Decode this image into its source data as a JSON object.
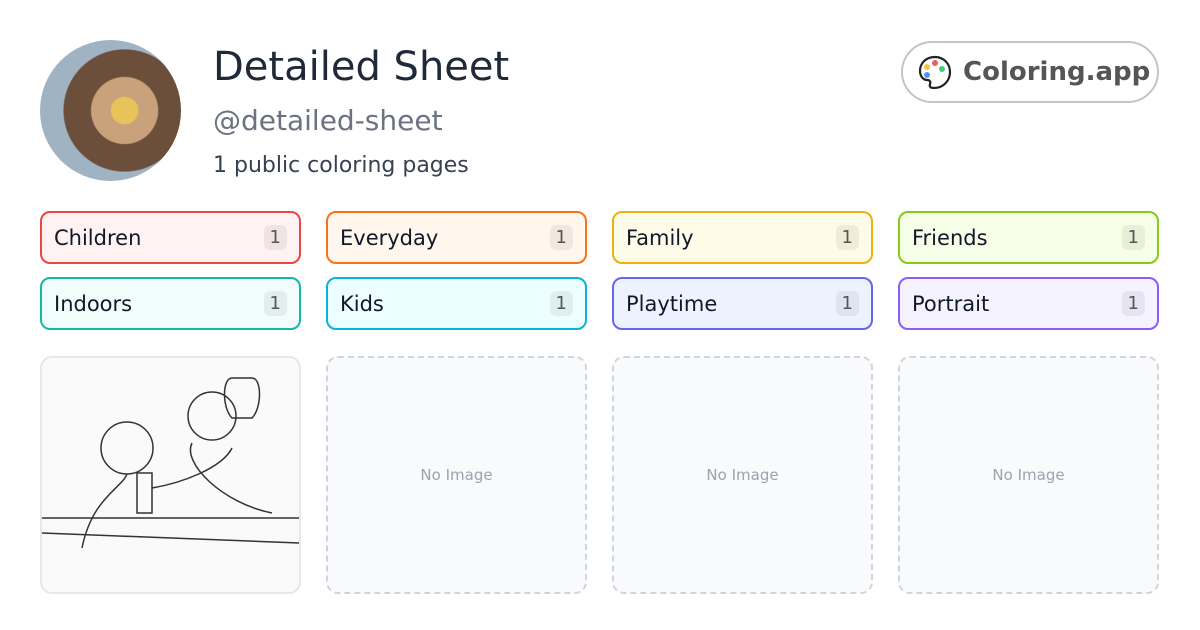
{
  "profile": {
    "name": "Detailed Sheet",
    "handle": "@detailed-sheet",
    "count_text": "1 public coloring pages"
  },
  "brand": {
    "label": "Coloring.app",
    "icon": "palette-icon"
  },
  "tags": [
    {
      "label": "Children",
      "count": "1",
      "color": "#ef4444",
      "bg": "#fef2f2"
    },
    {
      "label": "Everyday",
      "count": "1",
      "color": "#f97316",
      "bg": "#fff7ed"
    },
    {
      "label": "Family",
      "count": "1",
      "color": "#eab308",
      "bg": "#fefce8"
    },
    {
      "label": "Friends",
      "count": "1",
      "color": "#84cc16",
      "bg": "#f7fee7"
    },
    {
      "label": "Indoors",
      "count": "1",
      "color": "#14b8a6",
      "bg": "#f0fdfa"
    },
    {
      "label": "Kids",
      "count": "1",
      "color": "#06b6d4",
      "bg": "#ecfeff"
    },
    {
      "label": "Playtime",
      "count": "1",
      "color": "#6366f1",
      "bg": "#eef2ff"
    },
    {
      "label": "Portrait",
      "count": "1",
      "color": "#8b5cf6",
      "bg": "#f5f3ff"
    }
  ],
  "cards": [
    {
      "type": "image"
    },
    {
      "type": "empty",
      "label": "No Image"
    },
    {
      "type": "empty",
      "label": "No Image"
    },
    {
      "type": "empty",
      "label": "No Image"
    }
  ]
}
